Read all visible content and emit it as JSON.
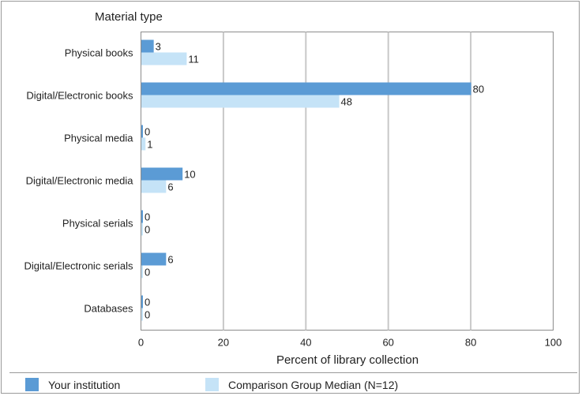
{
  "chart_data": {
    "type": "bar",
    "orientation": "horizontal",
    "y_axis_title": "Material type",
    "xlabel": "Percent of library collection",
    "xlim": [
      0,
      100
    ],
    "xticks": [
      0,
      20,
      40,
      60,
      80,
      100
    ],
    "grid": true,
    "categories": [
      "Physical books",
      "Digital/Electronic books",
      "Physical media",
      "Digital/Electronic media",
      "Physical serials",
      "Digital/Electronic serials",
      "Databases"
    ],
    "series": [
      {
        "name": "Your institution",
        "color": "#5b9bd5",
        "values": [
          3,
          80,
          0,
          10,
          0,
          6,
          0
        ]
      },
      {
        "name": "Comparison Group Median (N=12)",
        "color": "#c5e3f7",
        "values": [
          11,
          48,
          1,
          6,
          0,
          0,
          0
        ]
      }
    ],
    "legend_position": "bottom"
  }
}
